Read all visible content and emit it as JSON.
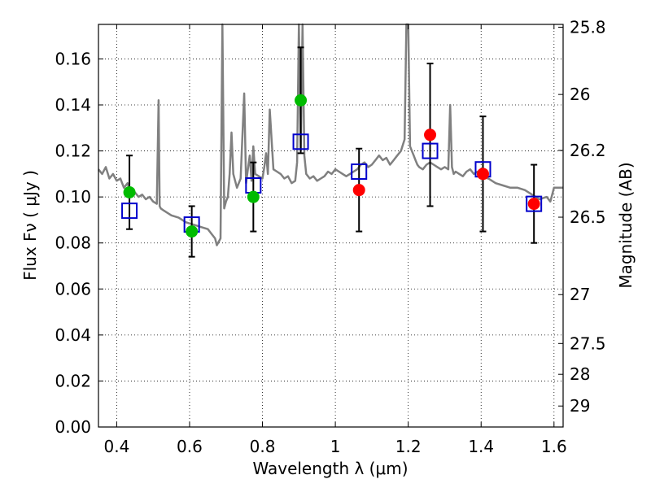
{
  "chart_data": {
    "type": "scatter",
    "xlabel": "Wavelength  λ (μm)",
    "ylabel": "Flux  Fν  ( μJy )",
    "ylabel_right": "Magnitude (AB)",
    "xlim": [
      0.35,
      1.625
    ],
    "ylim": [
      0.0,
      0.175
    ],
    "grid": true,
    "x_ticks": [
      0.4,
      0.6,
      0.8,
      1.0,
      1.2,
      1.4,
      1.6
    ],
    "x_tick_labels": [
      "0.4",
      "0.6",
      "0.8",
      "1",
      "1.2",
      "1.4",
      "1.6"
    ],
    "y_ticks": [
      0.0,
      0.02,
      0.04,
      0.06,
      0.08,
      0.1,
      0.12,
      0.14,
      0.16
    ],
    "y_tick_labels": [
      "0.00",
      "0.02",
      "0.04",
      "0.06",
      "0.08",
      "0.10",
      "0.12",
      "0.14",
      "0.16"
    ],
    "right_ticks": [
      {
        "label": "25.8",
        "mag": 25.8
      },
      {
        "label": "26",
        "mag": 26.0
      },
      {
        "label": "26.2",
        "mag": 26.2
      },
      {
        "label": "26.5",
        "mag": 26.5
      },
      {
        "label": "27",
        "mag": 27.0
      },
      {
        "label": "27.5",
        "mag": 27.5
      },
      {
        "label": "28",
        "mag": 28.0
      },
      {
        "label": "29",
        "mag": 29.0
      }
    ],
    "series": [
      {
        "marker": "circle",
        "color": "#00bb00",
        "x": [
          0.435,
          0.606,
          0.775,
          0.905
        ],
        "y": [
          0.102,
          0.085,
          0.1,
          0.142
        ],
        "yerr_low": [
          0.086,
          0.074,
          0.085,
          0.119
        ],
        "yerr_high": [
          0.118,
          0.096,
          0.115,
          0.165
        ]
      },
      {
        "marker": "circle",
        "color": "#ff0000",
        "x": [
          1.065,
          1.26,
          1.405,
          1.545
        ],
        "y": [
          0.103,
          0.127,
          0.11,
          0.097
        ],
        "yerr_low": [
          0.085,
          0.096,
          0.085,
          0.08
        ],
        "yerr_high": [
          0.121,
          0.158,
          0.135,
          0.114
        ]
      },
      {
        "marker": "square",
        "color": "#0000cc",
        "x": [
          0.435,
          0.606,
          0.775,
          0.905,
          1.065,
          1.26,
          1.405,
          1.545
        ],
        "y": [
          0.094,
          0.088,
          0.105,
          0.124,
          0.111,
          0.12,
          0.112,
          0.097
        ]
      }
    ],
    "spectrum": {
      "color": "#808080",
      "x": [
        0.35,
        0.36,
        0.37,
        0.38,
        0.39,
        0.4,
        0.41,
        0.42,
        0.43,
        0.44,
        0.45,
        0.46,
        0.47,
        0.48,
        0.49,
        0.5,
        0.51,
        0.515,
        0.518,
        0.521,
        0.53,
        0.55,
        0.57,
        0.59,
        0.61,
        0.63,
        0.65,
        0.66,
        0.67,
        0.675,
        0.685,
        0.69,
        0.695,
        0.7,
        0.705,
        0.71,
        0.715,
        0.72,
        0.73,
        0.74,
        0.75,
        0.755,
        0.76,
        0.765,
        0.77,
        0.775,
        0.78,
        0.79,
        0.8,
        0.805,
        0.81,
        0.815,
        0.82,
        0.83,
        0.84,
        0.85,
        0.86,
        0.87,
        0.88,
        0.89,
        0.895,
        0.9,
        0.905,
        0.91,
        0.915,
        0.92,
        0.93,
        0.94,
        0.95,
        0.96,
        0.97,
        0.98,
        0.99,
        1.0,
        1.01,
        1.02,
        1.03,
        1.04,
        1.05,
        1.06,
        1.07,
        1.08,
        1.09,
        1.1,
        1.11,
        1.12,
        1.13,
        1.14,
        1.15,
        1.16,
        1.17,
        1.18,
        1.19,
        1.195,
        1.2,
        1.205,
        1.21,
        1.215,
        1.22,
        1.225,
        1.23,
        1.24,
        1.25,
        1.26,
        1.27,
        1.28,
        1.29,
        1.3,
        1.31,
        1.315,
        1.32,
        1.325,
        1.33,
        1.34,
        1.35,
        1.36,
        1.37,
        1.38,
        1.39,
        1.4,
        1.42,
        1.44,
        1.46,
        1.48,
        1.5,
        1.52,
        1.54,
        1.56,
        1.58,
        1.59,
        1.6,
        1.625
      ],
      "y": [
        0.112,
        0.11,
        0.113,
        0.108,
        0.11,
        0.107,
        0.108,
        0.104,
        0.106,
        0.101,
        0.102,
        0.1,
        0.101,
        0.099,
        0.1,
        0.098,
        0.097,
        0.142,
        0.096,
        0.095,
        0.094,
        0.092,
        0.091,
        0.089,
        0.088,
        0.087,
        0.086,
        0.084,
        0.082,
        0.079,
        0.082,
        0.175,
        0.095,
        0.098,
        0.1,
        0.11,
        0.128,
        0.11,
        0.104,
        0.108,
        0.145,
        0.106,
        0.112,
        0.118,
        0.107,
        0.122,
        0.11,
        0.109,
        0.108,
        0.113,
        0.119,
        0.11,
        0.138,
        0.112,
        0.111,
        0.11,
        0.108,
        0.109,
        0.106,
        0.107,
        0.115,
        0.175,
        0.12,
        0.175,
        0.118,
        0.11,
        0.108,
        0.109,
        0.107,
        0.108,
        0.109,
        0.111,
        0.11,
        0.112,
        0.111,
        0.11,
        0.109,
        0.11,
        0.111,
        0.112,
        0.114,
        0.115,
        0.113,
        0.114,
        0.116,
        0.118,
        0.116,
        0.117,
        0.114,
        0.116,
        0.118,
        0.12,
        0.125,
        0.175,
        0.175,
        0.122,
        0.12,
        0.118,
        0.116,
        0.114,
        0.113,
        0.112,
        0.114,
        0.115,
        0.114,
        0.113,
        0.112,
        0.113,
        0.112,
        0.14,
        0.113,
        0.11,
        0.111,
        0.11,
        0.109,
        0.111,
        0.112,
        0.11,
        0.111,
        0.109,
        0.108,
        0.106,
        0.105,
        0.104,
        0.104,
        0.103,
        0.101,
        0.099,
        0.1,
        0.098,
        0.104,
        0.104
      ]
    }
  }
}
